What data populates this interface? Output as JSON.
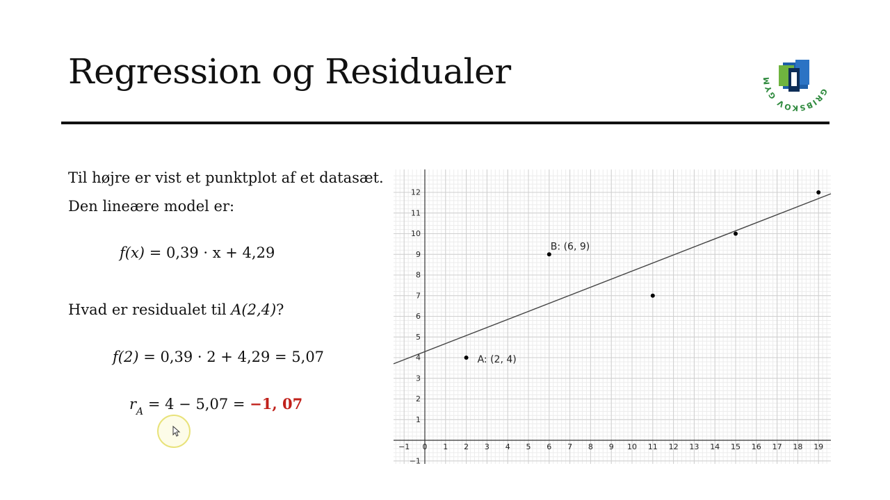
{
  "slide": {
    "title": "Regression og Residualer",
    "logo_text": "GRIBSKOV GYMNASIUM",
    "intro_line1": "Til højre er vist et punktplot af et datasæt.",
    "intro_line2": "Den lineære model er:",
    "model": {
      "fx": "f(x)",
      "rhs": "= 0,39 · x + 4,29"
    },
    "question": {
      "prefix": "Hvad er residualet til ",
      "point": "A(2,4)",
      "suffix": "?"
    },
    "calc1": {
      "lhs": "f(2)",
      "rhs": "= 0,39 · 2 + 4,29 = 5,07"
    },
    "calc2": {
      "lhs_r": "r",
      "lhs_sub": "A",
      "mid": "= 4 − 5,07 = ",
      "result": "−1, 07"
    }
  },
  "colors": {
    "result": "#c0201a",
    "line": "#444444",
    "points": "#000000",
    "grid_major": "#cfcfcf",
    "grid_minor": "#ececec"
  },
  "chart_data": {
    "type": "scatter",
    "xlim": [
      -1.5,
      19.5
    ],
    "ylim": [
      -1.5,
      12.8
    ],
    "grid": true,
    "x_ticks": [
      -1,
      0,
      1,
      2,
      3,
      4,
      5,
      6,
      7,
      8,
      9,
      10,
      11,
      12,
      13,
      14,
      15,
      16,
      17,
      18,
      19
    ],
    "y_ticks": [
      -1,
      1,
      2,
      3,
      4,
      5,
      6,
      7,
      8,
      9,
      10,
      11,
      12
    ],
    "x_tick_labels": [
      "−1",
      "0",
      "1",
      "2",
      "3",
      "4",
      "5",
      "6",
      "7",
      "8",
      "9",
      "10",
      "11",
      "12",
      "13",
      "14",
      "15",
      "16",
      "17",
      "18",
      "19"
    ],
    "y_tick_labels": [
      "−1",
      "1",
      "2",
      "3",
      "4",
      "5",
      "6",
      "7",
      "8",
      "9",
      "10",
      "11",
      "12"
    ],
    "points": [
      {
        "x": 2,
        "y": 4,
        "label": "A: (2, 4)"
      },
      {
        "x": 6,
        "y": 9,
        "label": "B: (6, 9)"
      },
      {
        "x": 11,
        "y": 7,
        "label": ""
      },
      {
        "x": 15,
        "y": 10,
        "label": ""
      },
      {
        "x": 19,
        "y": 12,
        "label": ""
      }
    ],
    "regression": {
      "slope": 0.39,
      "intercept": 4.29
    }
  }
}
